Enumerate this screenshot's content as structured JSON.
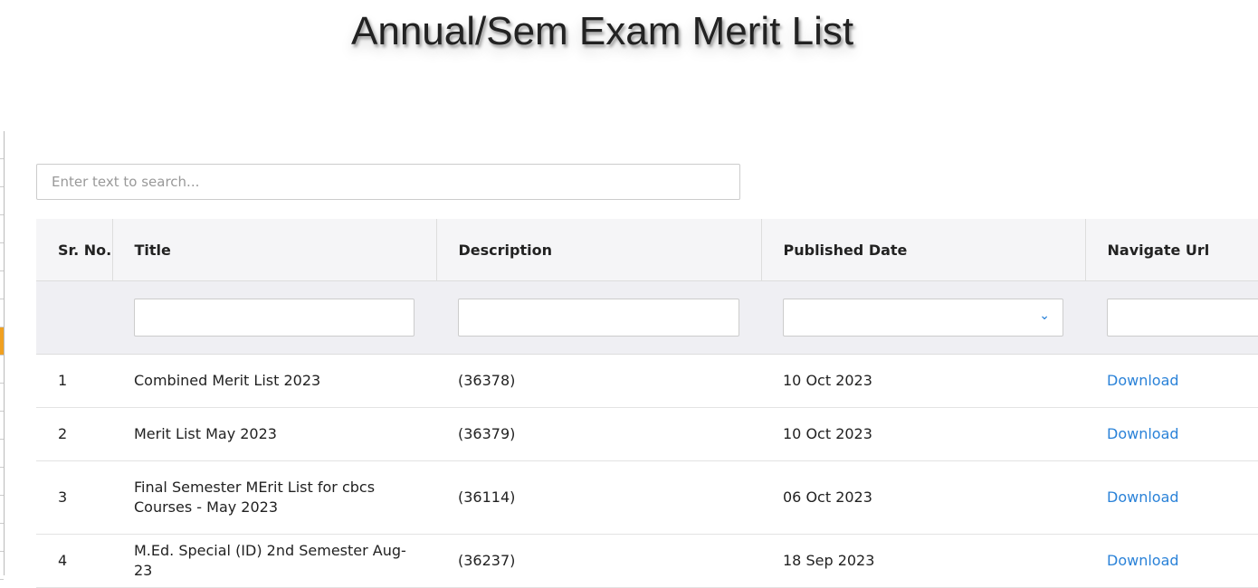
{
  "page": {
    "title": "Annual/Sem Exam Merit List"
  },
  "search": {
    "placeholder": "Enter text to search..."
  },
  "table": {
    "columns": [
      "Sr. No.",
      "Title",
      "Description",
      "Published Date",
      "Navigate Url"
    ],
    "rows": [
      {
        "sr": "1",
        "title": "Combined Merit List 2023",
        "description": "(36378)",
        "date": "10 Oct 2023",
        "link": "Download"
      },
      {
        "sr": "2",
        "title": "Merit List May 2023",
        "description": "(36379)",
        "date": "10 Oct 2023",
        "link": "Download"
      },
      {
        "sr": "3",
        "title": "Final Semester MErit List for cbcs Courses - May 2023",
        "description": "(36114)",
        "date": "06 Oct 2023",
        "link": "Download"
      },
      {
        "sr": "4",
        "title": "M.Ed. Special (ID) 2nd Semester Aug-23",
        "description": "(36237)",
        "date": "18 Sep 2023",
        "link": "Download"
      }
    ]
  },
  "colors": {
    "accent": "#2a82d8",
    "sidebar_active": "#f0a020"
  },
  "icons": {
    "date_filter": "chevron-down-icon"
  }
}
